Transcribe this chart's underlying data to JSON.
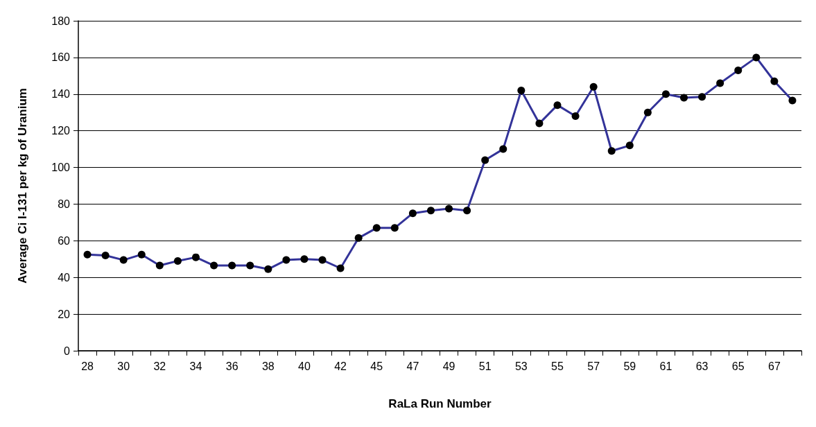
{
  "chart_data": {
    "type": "line",
    "xlabel": "RaLa Run Number",
    "ylabel": "Average Ci I-131 per kg of Uranium",
    "categories": [
      "28",
      null,
      "30",
      null,
      "32",
      null,
      "34",
      null,
      "36",
      null,
      "38",
      null,
      "40",
      null,
      "42",
      null,
      "45",
      null,
      "47",
      null,
      "49",
      null,
      "51",
      null,
      "53",
      null,
      "55",
      null,
      "57",
      null,
      "59",
      null,
      "61",
      null,
      "63",
      null,
      "65",
      null,
      "67",
      null
    ],
    "series": [
      {
        "color": "#333399",
        "values": [
          52.5,
          52,
          49.5,
          52.5,
          46.5,
          49,
          51,
          46.5,
          46.5,
          46.5,
          44.5,
          49.5,
          50,
          49.5,
          45,
          61.5,
          67,
          67,
          75,
          76.5,
          77.5,
          76.5,
          104,
          110,
          142,
          124,
          134,
          128,
          144,
          109,
          112,
          130,
          140,
          138,
          138.5,
          146,
          153,
          160,
          147,
          136.5
        ]
      }
    ],
    "ylim": [
      0,
      180
    ],
    "yticks": [
      0,
      20,
      40,
      60,
      80,
      100,
      120,
      140,
      160,
      180
    ],
    "grid": "y",
    "marker": "circle",
    "line_style": "solid"
  }
}
